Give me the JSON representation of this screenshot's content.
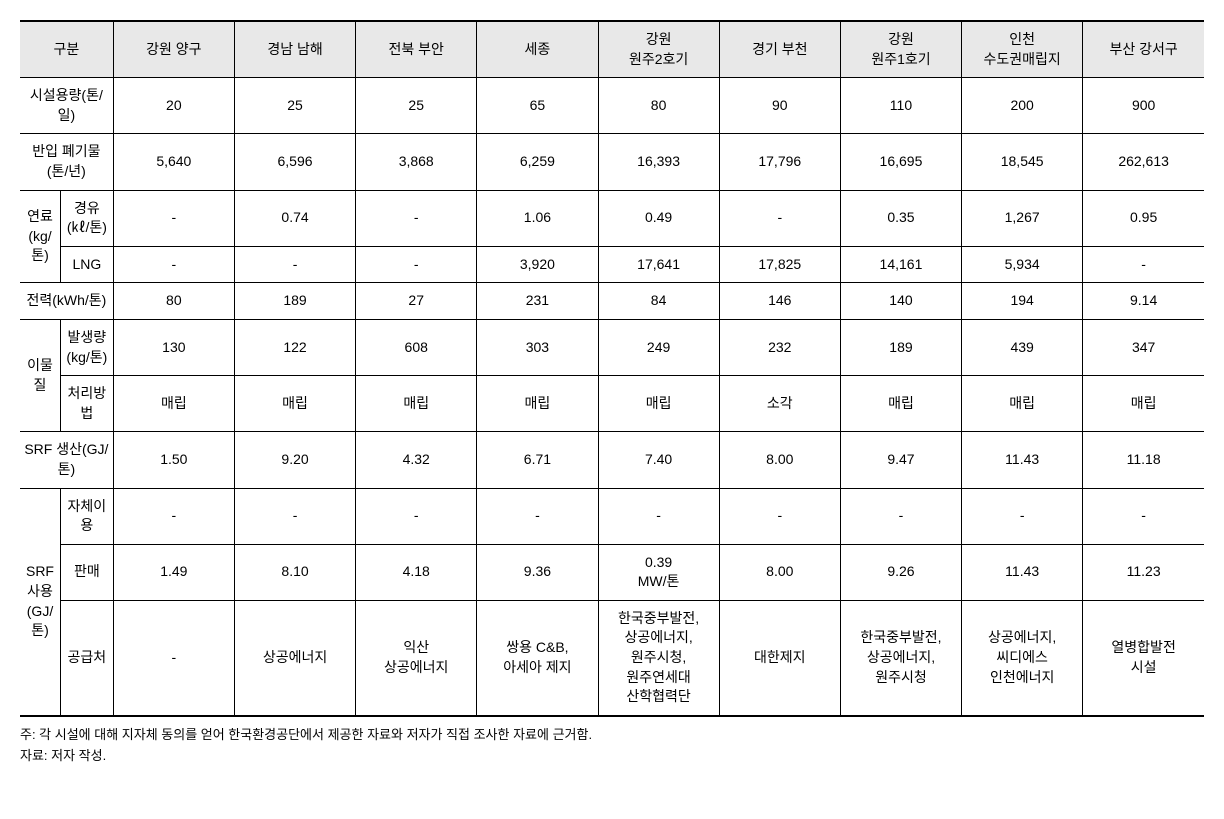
{
  "table": {
    "header_colors": {
      "background": "#e8e8e8",
      "border": "#000000"
    },
    "columns": {
      "category": "구분",
      "locations": [
        "강원 양구",
        "경남 남해",
        "전북 부안",
        "세종",
        "강원\n원주2호기",
        "경기 부천",
        "강원\n원주1호기",
        "인천\n수도권매립지",
        "부산 강서구"
      ]
    },
    "rows": [
      {
        "label_span": "시설용량(톤/일)",
        "values": [
          "20",
          "25",
          "25",
          "65",
          "80",
          "90",
          "110",
          "200",
          "900"
        ]
      },
      {
        "label_span": "반입 폐기물(톤/년)",
        "values": [
          "5,640",
          "6,596",
          "3,868",
          "6,259",
          "16,393",
          "17,796",
          "16,695",
          "18,545",
          "262,613"
        ]
      },
      {
        "group_label": "연료\n(kg/톤)",
        "sub_label": "경유(㎘/톤)",
        "values": [
          "-",
          "0.74",
          "-",
          "1.06",
          "0.49",
          "-",
          "0.35",
          "1,267",
          "0.95"
        ]
      },
      {
        "sub_label": "LNG",
        "values": [
          "-",
          "-",
          "-",
          "3,920",
          "17,641",
          "17,825",
          "14,161",
          "5,934",
          "-"
        ]
      },
      {
        "label_span": "전력(kWh/톤)",
        "values": [
          "80",
          "189",
          "27",
          "231",
          "84",
          "146",
          "140",
          "194",
          "9.14"
        ]
      },
      {
        "group_label": "이물질",
        "sub_label": "발생량(kg/톤)",
        "values": [
          "130",
          "122",
          "608",
          "303",
          "249",
          "232",
          "189",
          "439",
          "347"
        ]
      },
      {
        "sub_label": "처리방법",
        "values": [
          "매립",
          "매립",
          "매립",
          "매립",
          "매립",
          "소각",
          "매립",
          "매립",
          "매립"
        ]
      },
      {
        "label_span": "SRF 생산(GJ/톤)",
        "values": [
          "1.50",
          "9.20",
          "4.32",
          "6.71",
          "7.40",
          "8.00",
          "9.47",
          "11.43",
          "11.18"
        ]
      },
      {
        "group_label": "SRF 사용\n(GJ/톤)",
        "sub_label": "자체이용",
        "values": [
          "-",
          "-",
          "-",
          "-",
          "-",
          "-",
          "-",
          "-",
          "-"
        ]
      },
      {
        "sub_label": "판매",
        "values": [
          "1.49",
          "8.10",
          "4.18",
          "9.36",
          "0.39\nMW/톤",
          "8.00",
          "9.26",
          "11.43",
          "11.23"
        ]
      },
      {
        "sub_label": "공급처",
        "values": [
          "-",
          "상공에너지",
          "익산\n상공에너지",
          "쌍용 C&B,\n아세아 제지",
          "한국중부발전,\n상공에너지,\n원주시청,\n원주연세대\n산학협력단",
          "대한제지",
          "한국중부발전,\n상공에너지,\n원주시청",
          "상공에너지,\n씨디에스\n인천에너지",
          "열병합발전\n시설"
        ]
      }
    ]
  },
  "footnotes": {
    "note": "주: 각 시설에 대해 지자체 동의를 얻어 한국환경공단에서 제공한 자료와 저자가 직접 조사한 자료에 근거함.",
    "source": "자료: 저자 작성."
  }
}
